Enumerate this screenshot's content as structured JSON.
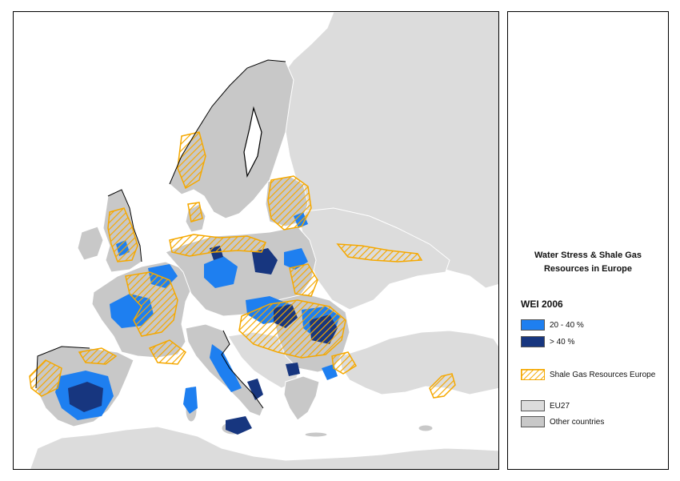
{
  "colors": {
    "sea": "#ffffff",
    "eu27": "#c8c8c8",
    "other_countries": "#dcdcdc",
    "border": "#ffffff",
    "stress_20_40": "#1e7ff0",
    "stress_over_40": "#17367f",
    "shale_hatch": "#f5a800",
    "coast": "#000000"
  },
  "legend": {
    "title_line1": "Water Stress & Shale Gas",
    "title_line2": "Resources in Europe",
    "section": "WEI 2006",
    "items": [
      {
        "label": "20 - 40 %",
        "swatch": "stress_20_40"
      },
      {
        "label": "> 40 %",
        "swatch": "stress_over_40"
      },
      {
        "label": "Shale Gas Resources Europe",
        "swatch": "shale"
      },
      {
        "label": "EU27",
        "swatch": "other_countries"
      },
      {
        "label": "Other countries",
        "swatch": "eu27"
      }
    ]
  }
}
